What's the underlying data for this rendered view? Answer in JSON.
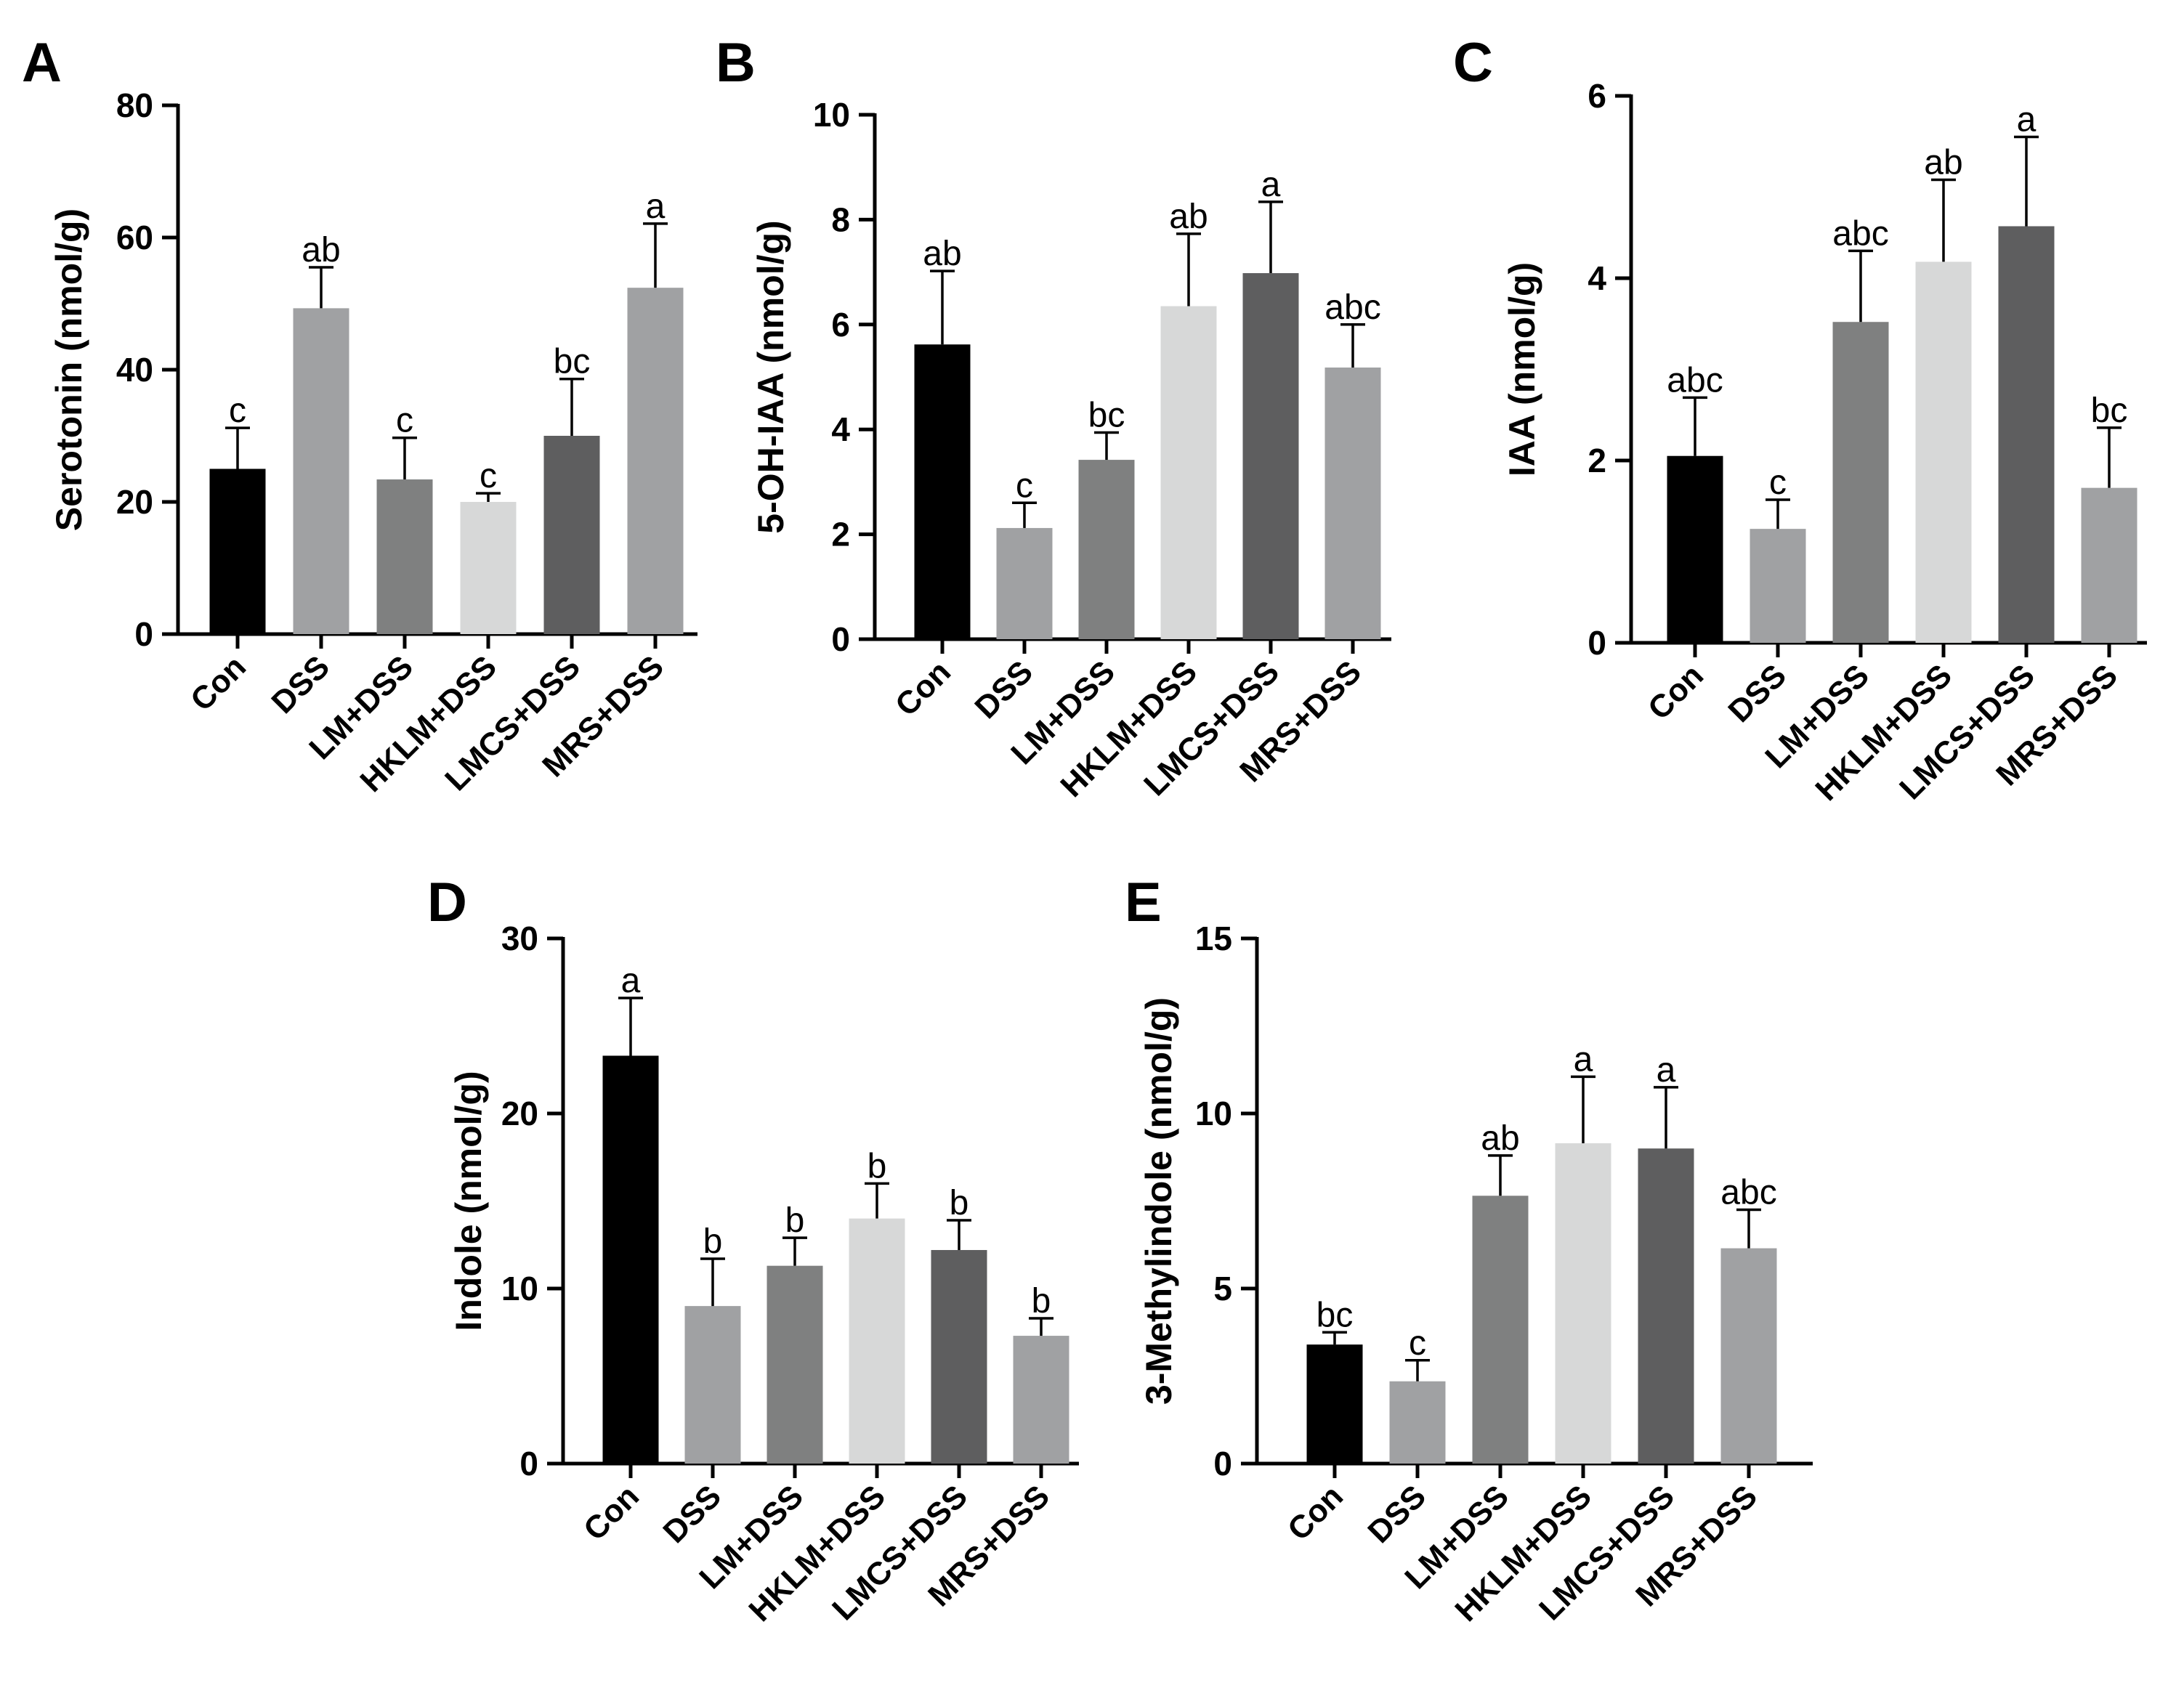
{
  "chart_data": [
    {
      "type": "bar",
      "panel": "A",
      "ylabel": "Serotonin (nmol/g)",
      "ylim": [
        0,
        80
      ],
      "yticks": [
        0,
        20,
        40,
        60,
        80
      ],
      "categories": [
        "Con",
        "DSS",
        "LM+DSS",
        "HKLM+DSS",
        "LMCS+DSS",
        "MRS+DSS"
      ],
      "values": [
        25.0,
        49.3,
        23.4,
        20.0,
        30.0,
        52.4
      ],
      "errors": [
        6.2,
        6.2,
        6.3,
        1.3,
        8.6,
        9.7
      ],
      "significance": [
        "c",
        "ab",
        "c",
        "c",
        "bc",
        "a"
      ],
      "colors": [
        "#000000",
        "#a0a1a3",
        "#7f8080",
        "#d7d8d8",
        "#5e5e5f",
        "#a0a1a3"
      ]
    },
    {
      "type": "bar",
      "panel": "B",
      "ylabel": "5-OH-IAA (nmol/g)",
      "ylim": [
        0,
        10
      ],
      "yticks": [
        0,
        2,
        4,
        6,
        8,
        10
      ],
      "categories": [
        "Con",
        "DSS",
        "LM+DSS",
        "HKLM+DSS",
        "LMCS+DSS",
        "MRS+DSS"
      ],
      "values": [
        5.62,
        2.12,
        3.42,
        6.35,
        6.98,
        5.18
      ],
      "errors": [
        1.4,
        0.48,
        0.52,
        1.38,
        1.36,
        0.82
      ],
      "significance": [
        "ab",
        "c",
        "bc",
        "ab",
        "a",
        "abc"
      ],
      "colors": [
        "#000000",
        "#a0a1a3",
        "#7f8080",
        "#d7d8d8",
        "#5e5e5f",
        "#a0a1a3"
      ]
    },
    {
      "type": "bar",
      "panel": "C",
      "ylabel": "IAA (nmol/g)",
      "ylim": [
        0,
        6
      ],
      "yticks": [
        0,
        2,
        4,
        6
      ],
      "categories": [
        "Con",
        "DSS",
        "LM+DSS",
        "HKLM+DSS",
        "LMCS+DSS",
        "MRS+DSS"
      ],
      "values": [
        2.05,
        1.25,
        3.52,
        4.18,
        4.57,
        1.7
      ],
      "errors": [
        0.64,
        0.32,
        0.78,
        0.9,
        0.98,
        0.66
      ],
      "significance": [
        "abc",
        "c",
        "abc",
        "ab",
        "a",
        "bc"
      ],
      "colors": [
        "#000000",
        "#a0a1a3",
        "#7f8080",
        "#d7d8d8",
        "#5e5e5f",
        "#a0a1a3"
      ]
    },
    {
      "type": "bar",
      "panel": "D",
      "ylabel": "Indole (nmol/g)",
      "ylim": [
        0,
        30
      ],
      "yticks": [
        0,
        10,
        20,
        30
      ],
      "categories": [
        "Con",
        "DSS",
        "LM+DSS",
        "HKLM+DSS",
        "LMCS+DSS",
        "MRS+DSS"
      ],
      "values": [
        23.3,
        9.0,
        11.3,
        14.0,
        12.2,
        7.3
      ],
      "errors": [
        3.3,
        2.7,
        1.6,
        2.0,
        1.7,
        1.0
      ],
      "significance": [
        "a",
        "b",
        "b",
        "b",
        "b",
        "b"
      ],
      "colors": [
        "#000000",
        "#a0a1a3",
        "#7f8080",
        "#d7d8d8",
        "#5e5e5f",
        "#a0a1a3"
      ]
    },
    {
      "type": "bar",
      "panel": "E",
      "ylabel": "3-Methylindole (nmol/g)",
      "ylim": [
        0,
        15
      ],
      "yticks": [
        0,
        5,
        10,
        15
      ],
      "categories": [
        "Con",
        "DSS",
        "LM+DSS",
        "HKLM+DSS",
        "LMCS+DSS",
        "MRS+DSS"
      ],
      "values": [
        3.4,
        2.35,
        7.65,
        9.15,
        9.0,
        6.15
      ],
      "errors": [
        0.35,
        0.6,
        1.15,
        1.9,
        1.75,
        1.1
      ],
      "significance": [
        "bc",
        "c",
        "ab",
        "a",
        "a",
        "abc"
      ],
      "colors": [
        "#000000",
        "#a0a1a3",
        "#7f8080",
        "#d7d8d8",
        "#5e5e5f",
        "#a0a1a3"
      ]
    }
  ]
}
